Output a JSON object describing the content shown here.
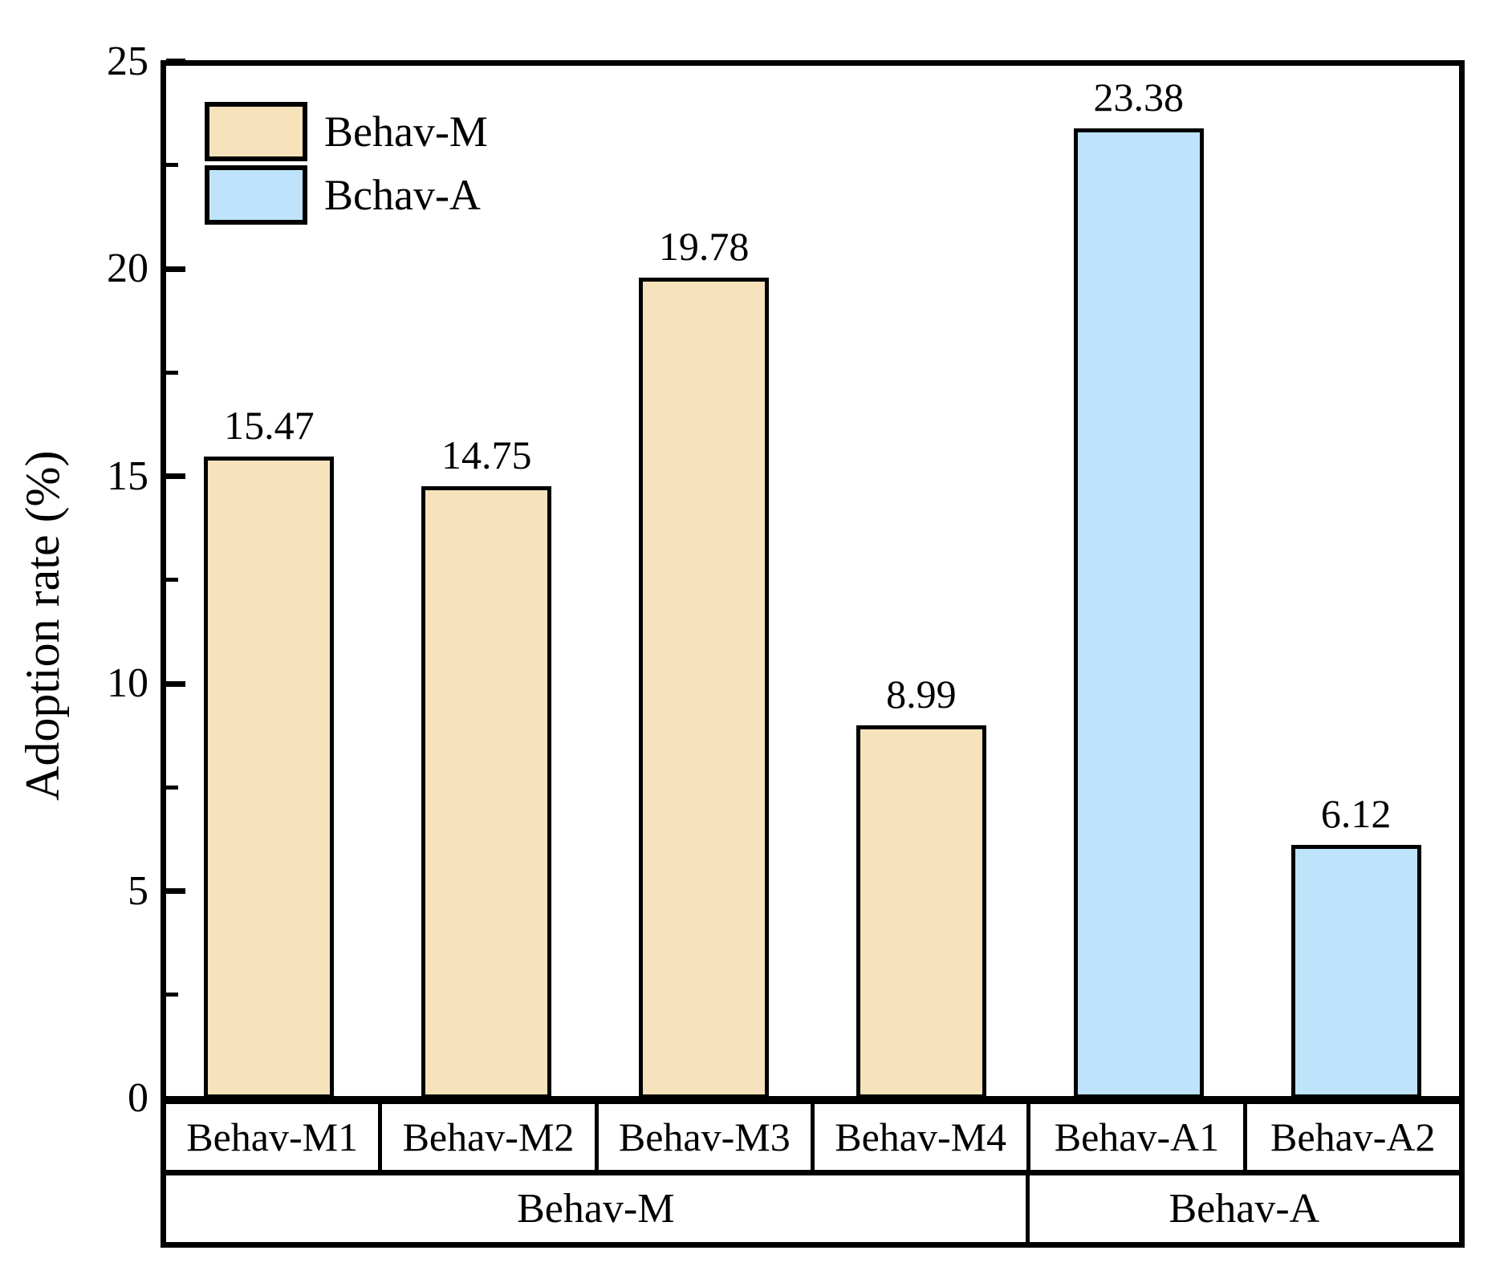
{
  "chart_data": {
    "type": "bar",
    "title": "",
    "xlabel": "",
    "ylabel": "Adoption rate (%)",
    "ylim": [
      0,
      25
    ],
    "yticks": [
      0,
      5,
      10,
      15,
      20,
      25
    ],
    "ytick_labels": [
      "0",
      "5",
      "10",
      "15",
      "20",
      "25"
    ],
    "minor_ticks": [
      2.5,
      7.5,
      12.5,
      17.5,
      22.5
    ],
    "grid": false,
    "legend_position": "top-left",
    "legend": [
      {
        "label": "Behav-M",
        "color": "#F6E3BB"
      },
      {
        "label": "Bchav-A",
        "color": "#BEE3FA"
      }
    ],
    "categories": [
      "Behav-M1",
      "Behav-M2",
      "Behav-M3",
      "Behav-M4",
      "Behav-A1",
      "Behav-A2"
    ],
    "values": [
      15.47,
      14.75,
      19.78,
      8.99,
      23.38,
      6.12
    ],
    "value_labels": [
      "15.47",
      "14.75",
      "19.78",
      "8.99",
      "23.38",
      "6.12"
    ],
    "bar_series": [
      "Behav-M",
      "Behav-M",
      "Behav-M",
      "Behav-M",
      "Behav-A",
      "Behav-A"
    ],
    "bar_colors": [
      "#F6E3BB",
      "#F6E3BB",
      "#F6E3BB",
      "#F6E3BB",
      "#BEE3FA",
      "#BEE3FA"
    ],
    "groups": [
      {
        "label": "Behav-M",
        "span": 4
      },
      {
        "label": "Behav-A",
        "span": 2
      }
    ],
    "colors": {
      "behav_m_fill": "#F6E3BB",
      "behav_a_fill": "#BEE3FA",
      "axis": "#000000",
      "text": "#000000",
      "background": "#FFFFFF"
    }
  }
}
